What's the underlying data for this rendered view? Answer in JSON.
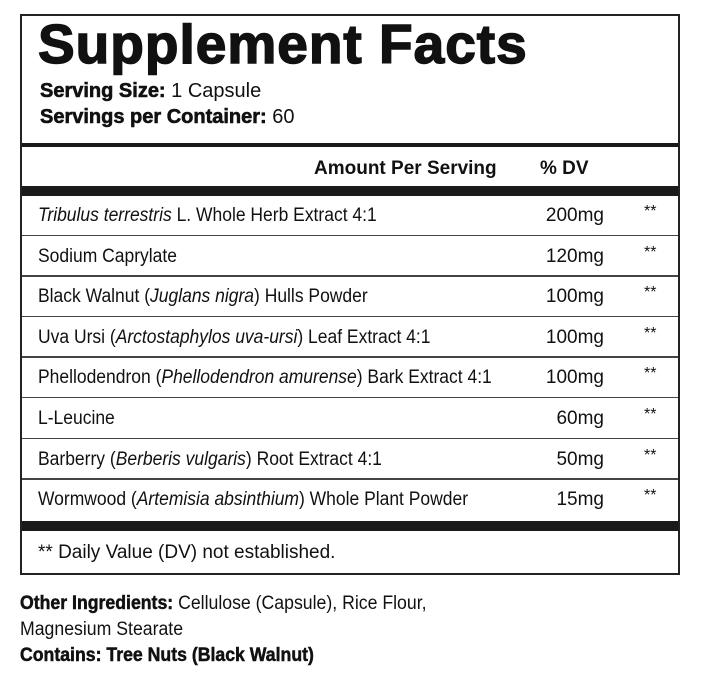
{
  "title": "Supplement Facts",
  "serving_size": {
    "label": "Serving Size:",
    "value": "1 Capsule"
  },
  "servings_per_container": {
    "label": "Servings per Container:",
    "value": "60"
  },
  "header": {
    "amount": "Amount Per Serving",
    "dv": "% DV"
  },
  "ingredients": [
    {
      "name": [
        {
          "t": "Tribulus terrestris",
          "i": true
        },
        {
          "t": " L. Whole Herb Extract 4:1",
          "i": false
        }
      ],
      "amount": "200mg",
      "dv": "**"
    },
    {
      "name": [
        {
          "t": "Sodium Caprylate",
          "i": false
        }
      ],
      "amount": "120mg",
      "dv": "**"
    },
    {
      "name": [
        {
          "t": "Black Walnut (",
          "i": false
        },
        {
          "t": "Juglans nigra",
          "i": true
        },
        {
          "t": ") Hulls Powder",
          "i": false
        }
      ],
      "amount": "100mg",
      "dv": "**"
    },
    {
      "name": [
        {
          "t": "Uva Ursi (",
          "i": false
        },
        {
          "t": "Arctostaphylos uva-ursi",
          "i": true
        },
        {
          "t": ") Leaf Extract 4:1",
          "i": false
        }
      ],
      "amount": "100mg",
      "dv": "**"
    },
    {
      "name": [
        {
          "t": "Phellodendron (",
          "i": false
        },
        {
          "t": "Phellodendron amurense",
          "i": true
        },
        {
          "t": ") Bark Extract 4:1",
          "i": false
        }
      ],
      "amount": "100mg",
      "dv": "**"
    },
    {
      "name": [
        {
          "t": "L-Leucine",
          "i": false
        }
      ],
      "amount": "60mg",
      "dv": "**"
    },
    {
      "name": [
        {
          "t": "Barberry (",
          "i": false
        },
        {
          "t": "Berberis vulgaris",
          "i": true
        },
        {
          "t": ") Root Extract 4:1",
          "i": false
        }
      ],
      "amount": "50mg",
      "dv": "**"
    },
    {
      "name": [
        {
          "t": "Wormwood (",
          "i": false
        },
        {
          "t": "Artemisia absinthium",
          "i": true
        },
        {
          "t": ") Whole Plant Powder",
          "i": false
        }
      ],
      "amount": "15mg",
      "dv": "**"
    }
  ],
  "footnote": "** Daily Value (DV) not established.",
  "other_ingredients": {
    "label": "Other Ingredients:",
    "line1": "Cellulose (Capsule), Rice Flour,",
    "line2": "Magnesium Stearate"
  },
  "contains": {
    "label": "Contains:",
    "value": "Tree Nuts (Black Walnut)"
  }
}
